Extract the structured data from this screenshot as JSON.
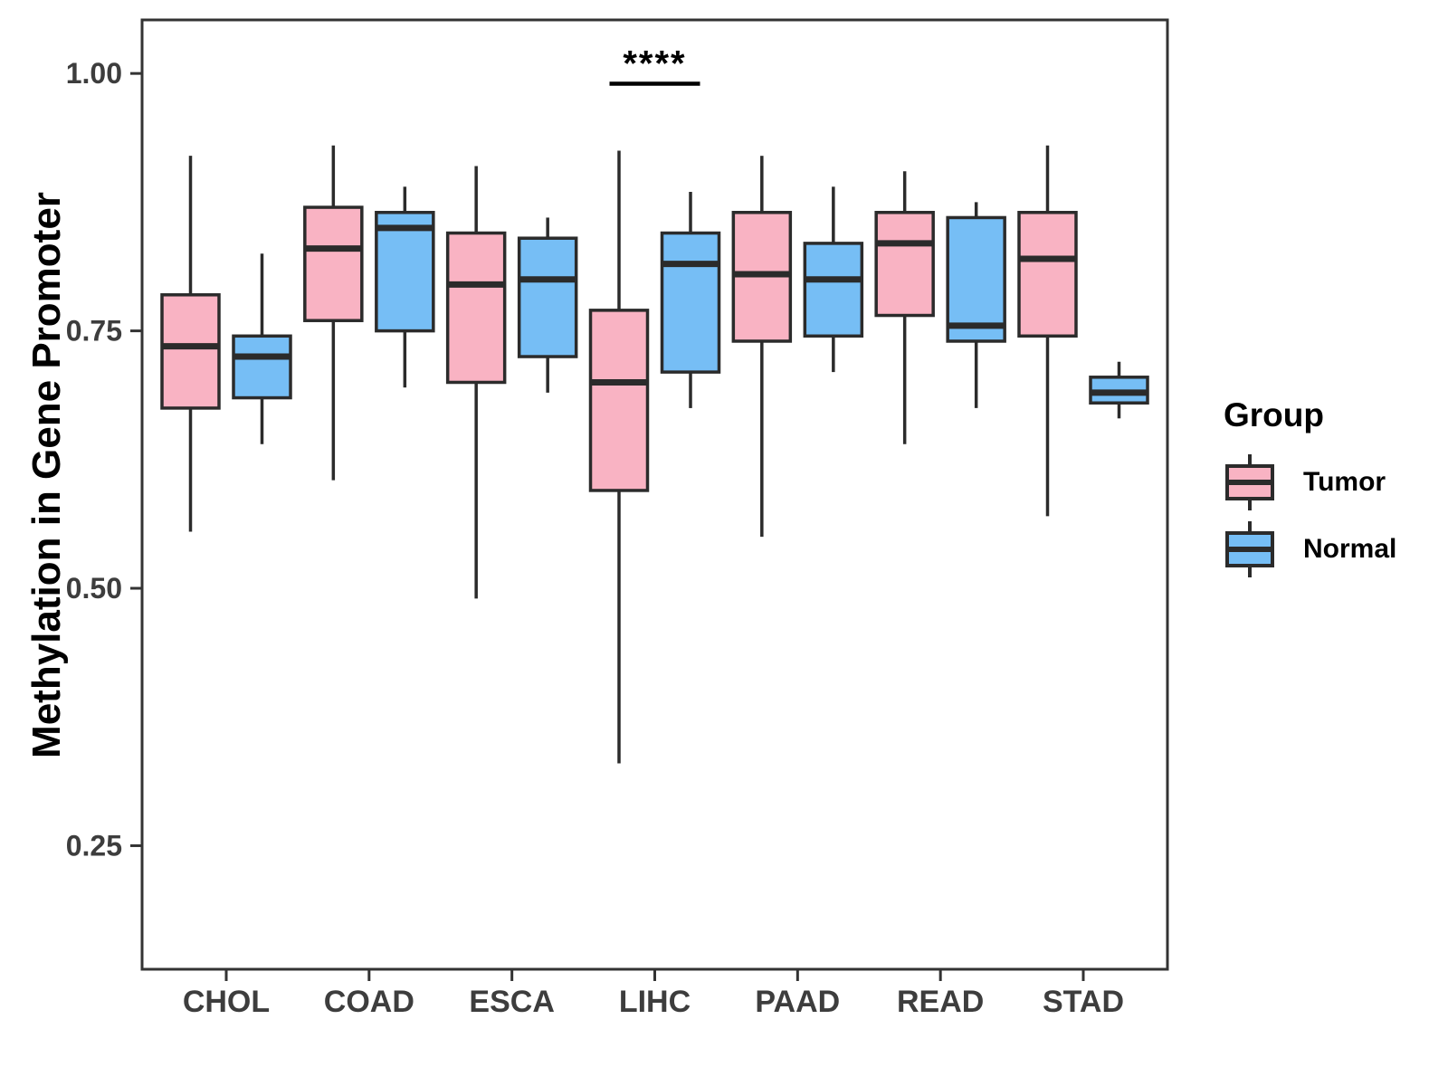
{
  "figure": {
    "y_axis_title": "Methylation in Gene Promoter",
    "legend": {
      "title": "Group",
      "items": [
        {
          "label": "Tumor",
          "color": "#F9B3C3"
        },
        {
          "label": "Normal",
          "color": "#76BEF5"
        }
      ]
    }
  },
  "chart_data": {
    "type": "grouped_boxplot",
    "title": "",
    "xlabel": "",
    "ylabel": "Methylation in Gene Promoter",
    "grid": false,
    "legend_position": "right",
    "categories": [
      "CHOL",
      "COAD",
      "ESCA",
      "LIHC",
      "PAAD",
      "READ",
      "STAD"
    ],
    "yticks": [
      {
        "value": 1.0,
        "label": "1.00"
      },
      {
        "value": 0.75,
        "label": "0.75"
      },
      {
        "value": 0.5,
        "label": "0.50"
      },
      {
        "value": 0.25,
        "label": "0.25"
      }
    ],
    "ylim": [
      0.13,
      1.052
    ],
    "stroke_color": "#2b2b2b",
    "series": [
      {
        "name": "Tumor",
        "fill": "#F9B3C3",
        "stats": [
          {
            "category": "CHOL",
            "whisker_low": 0.555,
            "q1": 0.675,
            "median": 0.735,
            "q3": 0.785,
            "whisker_high": 0.92
          },
          {
            "category": "COAD",
            "whisker_low": 0.605,
            "q1": 0.76,
            "median": 0.83,
            "q3": 0.87,
            "whisker_high": 0.93
          },
          {
            "category": "ESCA",
            "whisker_low": 0.49,
            "q1": 0.7,
            "median": 0.795,
            "q3": 0.845,
            "whisker_high": 0.91
          },
          {
            "category": "LIHC",
            "whisker_low": 0.33,
            "q1": 0.595,
            "median": 0.7,
            "q3": 0.77,
            "whisker_high": 0.925
          },
          {
            "category": "PAAD",
            "whisker_low": 0.55,
            "q1": 0.74,
            "median": 0.805,
            "q3": 0.865,
            "whisker_high": 0.92
          },
          {
            "category": "READ",
            "whisker_low": 0.64,
            "q1": 0.765,
            "median": 0.835,
            "q3": 0.865,
            "whisker_high": 0.905
          },
          {
            "category": "STAD",
            "whisker_low": 0.57,
            "q1": 0.745,
            "median": 0.82,
            "q3": 0.865,
            "whisker_high": 0.93
          }
        ]
      },
      {
        "name": "Normal",
        "fill": "#76BEF5",
        "stats": [
          {
            "category": "CHOL",
            "whisker_low": 0.64,
            "q1": 0.685,
            "median": 0.725,
            "q3": 0.745,
            "whisker_high": 0.825
          },
          {
            "category": "COAD",
            "whisker_low": 0.695,
            "q1": 0.75,
            "median": 0.85,
            "q3": 0.865,
            "whisker_high": 0.89
          },
          {
            "category": "ESCA",
            "whisker_low": 0.69,
            "q1": 0.725,
            "median": 0.8,
            "q3": 0.84,
            "whisker_high": 0.86
          },
          {
            "category": "LIHC",
            "whisker_low": 0.675,
            "q1": 0.71,
            "median": 0.815,
            "q3": 0.845,
            "whisker_high": 0.885
          },
          {
            "category": "PAAD",
            "whisker_low": 0.71,
            "q1": 0.745,
            "median": 0.8,
            "q3": 0.835,
            "whisker_high": 0.89
          },
          {
            "category": "READ",
            "whisker_low": 0.675,
            "q1": 0.74,
            "median": 0.755,
            "q3": 0.86,
            "whisker_high": 0.875
          },
          {
            "category": "STAD",
            "whisker_low": 0.665,
            "q1": 0.68,
            "median": 0.69,
            "q3": 0.705,
            "whisker_high": 0.72
          }
        ]
      }
    ],
    "significance": {
      "label": "****",
      "category": "LIHC",
      "bar_value": 0.99
    }
  }
}
